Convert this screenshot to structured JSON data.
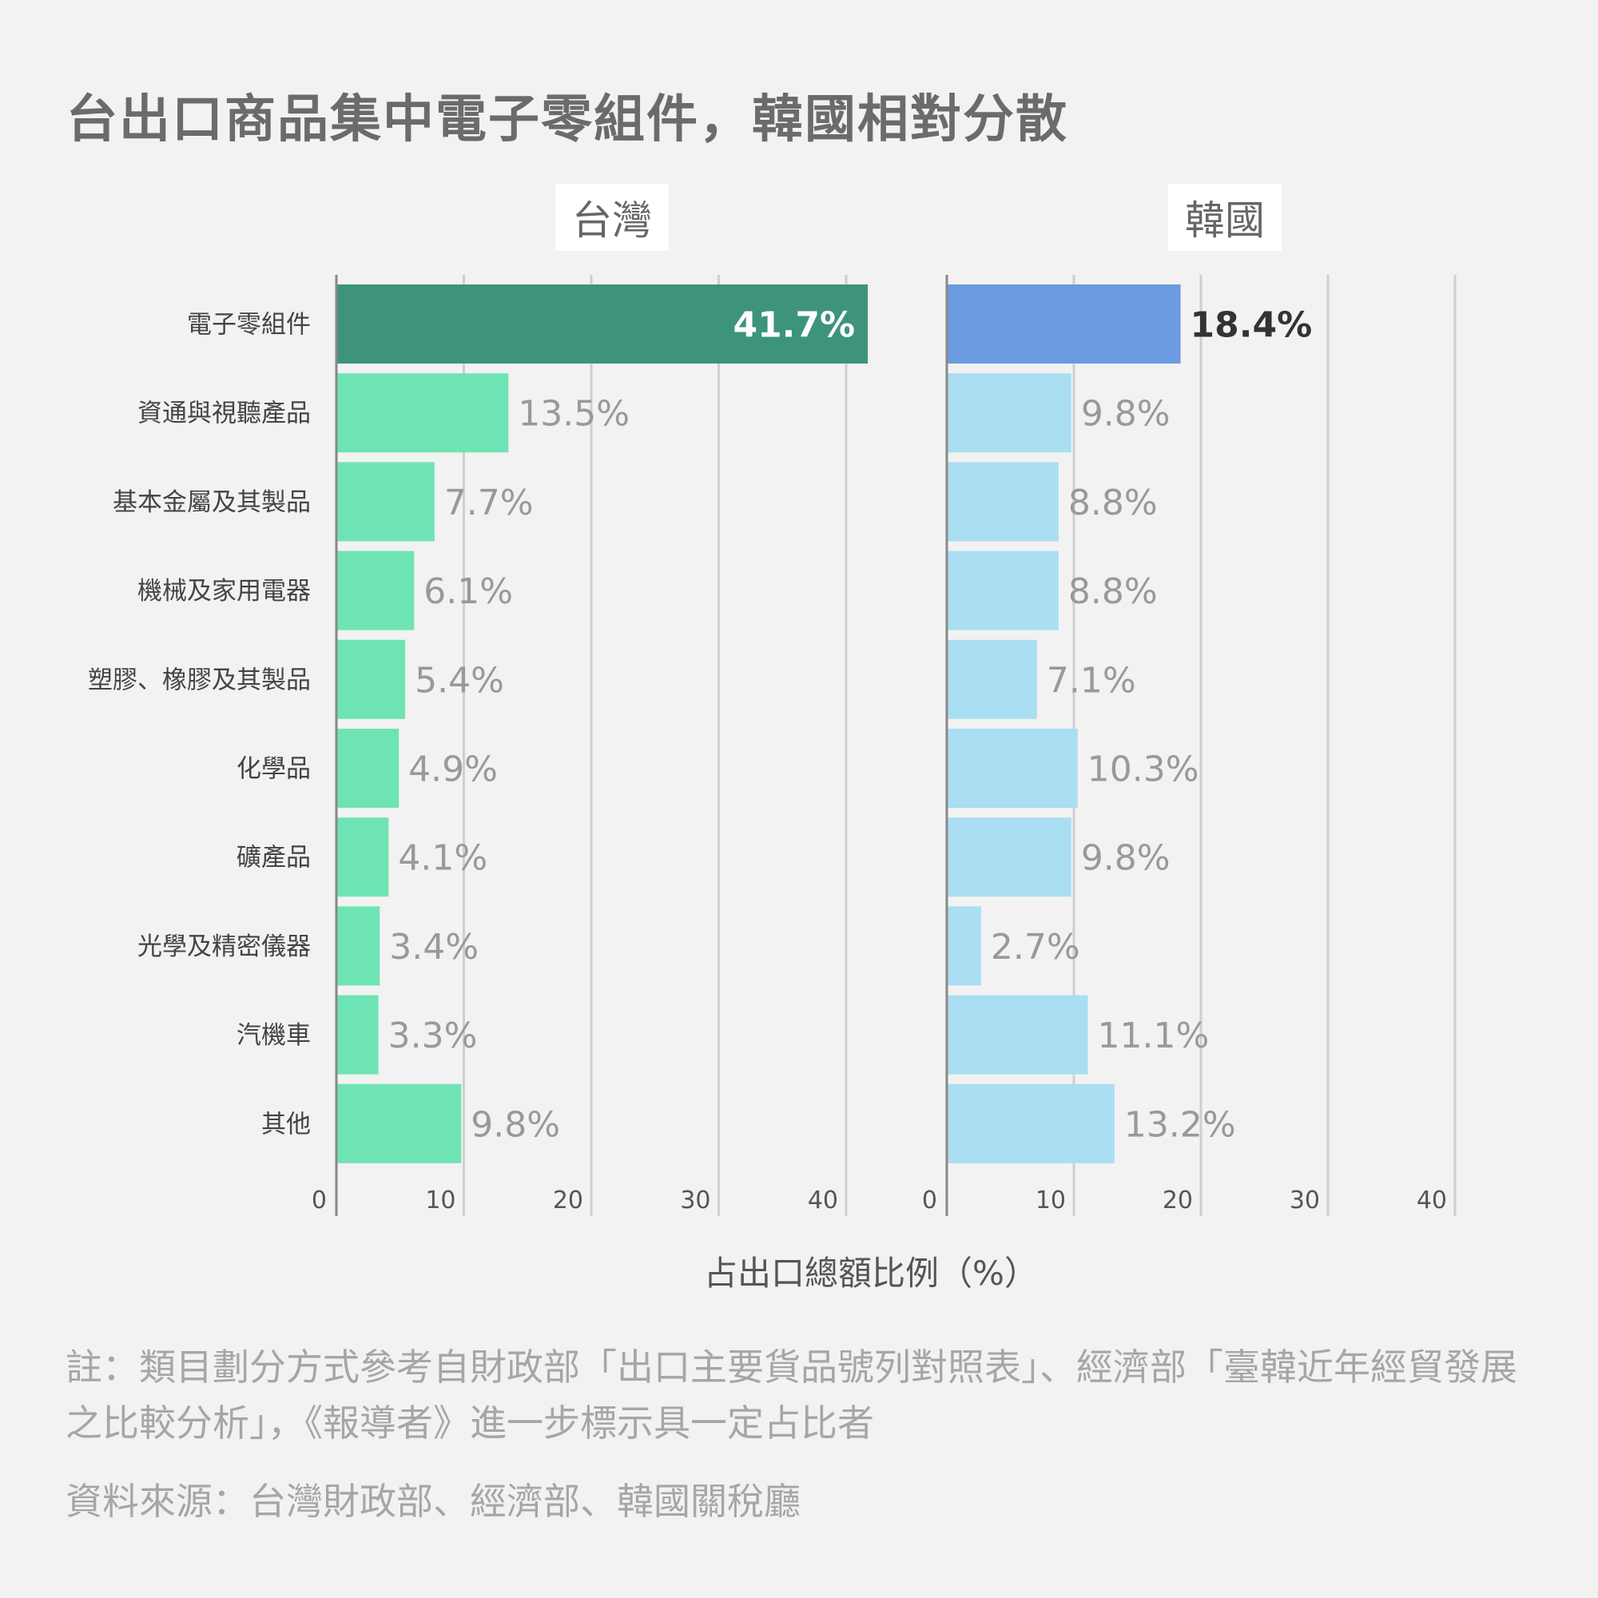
{
  "title": "台出口商品集中電子零組件，韓國相對分散",
  "chart_data": [
    {
      "type": "bar",
      "orientation": "horizontal",
      "title": "台灣",
      "categories": [
        "電子零組件",
        "資通與視聽產品",
        "基本金屬及其製品",
        "機械及家用電器",
        "塑膠、橡膠及其製品",
        "化學品",
        "礦產品",
        "光學及精密儀器",
        "汽機車",
        "其他"
      ],
      "values": [
        41.7,
        13.5,
        7.7,
        6.1,
        5.4,
        4.9,
        4.1,
        3.4,
        3.3,
        9.8
      ],
      "value_labels": [
        "41.7%",
        "13.5%",
        "7.7%",
        "6.1%",
        "5.4%",
        "4.9%",
        "4.1%",
        "3.4%",
        "3.3%",
        "9.8%"
      ],
      "highlight_color": "#3e937b",
      "color": "#6ee4b4",
      "xlim": [
        0,
        40
      ],
      "xticks": [
        "0",
        "10",
        "20",
        "30",
        "40"
      ],
      "grid": true
    },
    {
      "type": "bar",
      "orientation": "horizontal",
      "title": "韓國",
      "categories": [
        "電子零組件",
        "資通與視聽產品",
        "基本金屬及其製品",
        "機械及家用電器",
        "塑膠、橡膠及其製品",
        "化學品",
        "礦產品",
        "光學及精密儀器",
        "汽機車",
        "其他"
      ],
      "values": [
        18.4,
        9.8,
        8.8,
        8.8,
        7.1,
        10.3,
        9.8,
        2.7,
        11.1,
        13.2
      ],
      "value_labels": [
        "18.4%",
        "9.8%",
        "8.8%",
        "8.8%",
        "7.1%",
        "10.3%",
        "9.8%",
        "2.7%",
        "11.1%",
        "13.2%"
      ],
      "highlight_color": "#6b9be0",
      "color": "#aadef3",
      "xlim": [
        0,
        40
      ],
      "xticks": [
        "0",
        "10",
        "20",
        "30",
        "40"
      ],
      "grid": true
    }
  ],
  "xlabel": "占出口總額比例（%）",
  "note": "註：類目劃分方式參考自財政部「出口主要貨品號列對照表」、經濟部「臺韓近年經貿發展之比較分析」，《報導者》進一步標示具一定占比者",
  "source": "資料來源：台灣財政部、經濟部、韓國關稅廳"
}
